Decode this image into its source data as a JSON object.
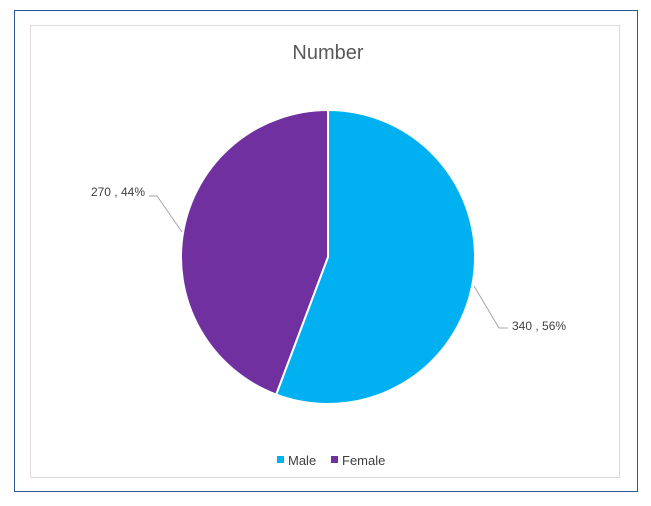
{
  "chart_data": {
    "type": "pie",
    "title": "Number",
    "categories": [
      "Male",
      "Female"
    ],
    "values": [
      340,
      270
    ],
    "percentages": [
      "56%",
      "44%"
    ],
    "data_labels": [
      "340 , 56%",
      "270 , 44%"
    ],
    "colors": [
      "#00b0f0",
      "#7030a0"
    ],
    "legend_position": "bottom",
    "legend": [
      {
        "label": "Male",
        "color": "#00b0f0"
      },
      {
        "label": "Female",
        "color": "#7030a0"
      }
    ]
  }
}
